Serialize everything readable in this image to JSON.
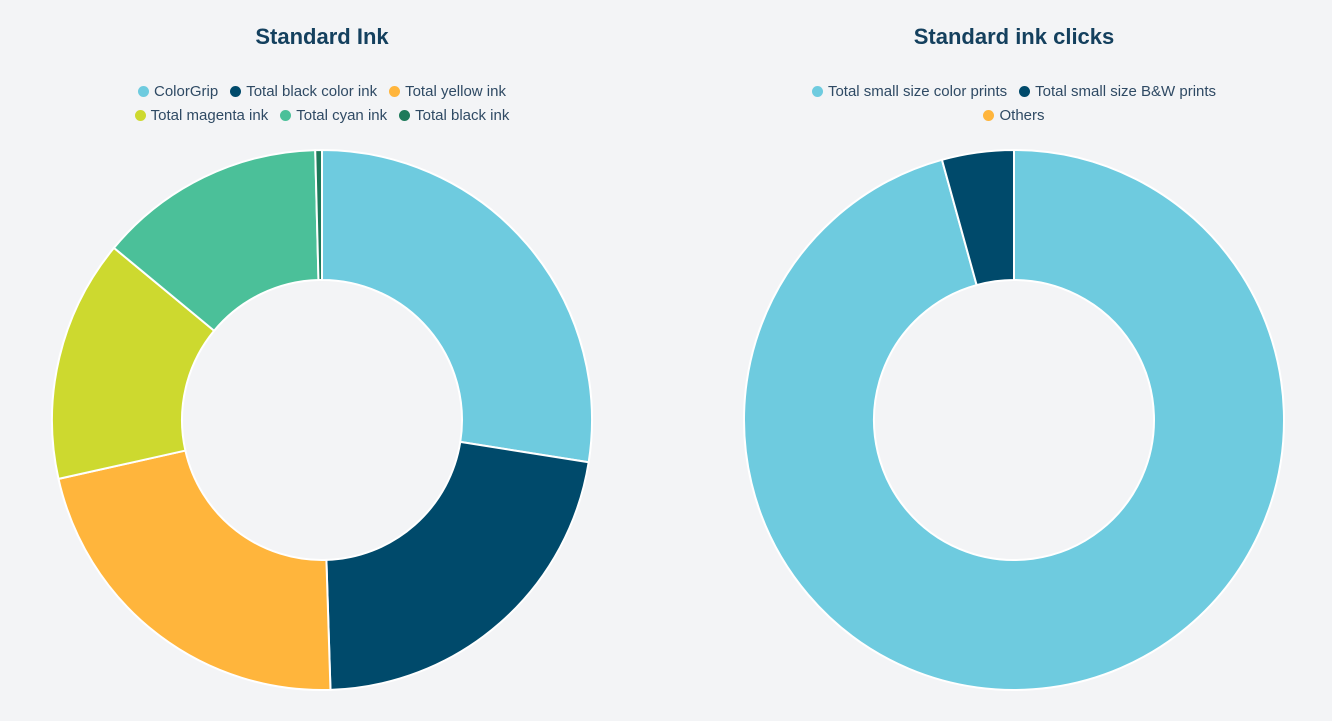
{
  "chart_data": [
    {
      "type": "pie",
      "title": "Standard Ink",
      "donut": true,
      "legend": "top",
      "series": [
        {
          "name": "ColorGrip",
          "value": 27.5,
          "color": "#6ecbdf"
        },
        {
          "name": "Total black color ink",
          "value": 22.0,
          "color": "#004a6b"
        },
        {
          "name": "Total yellow ink",
          "value": 22.0,
          "color": "#ffb53c"
        },
        {
          "name": "Total magenta ink",
          "value": 14.5,
          "color": "#cdd92f"
        },
        {
          "name": "Total cyan ink",
          "value": 13.6,
          "color": "#4bc099"
        },
        {
          "name": "Total black ink",
          "value": 0.4,
          "color": "#1e7a5a"
        }
      ],
      "legend_rows": [
        [
          0,
          1,
          2
        ],
        [
          3,
          4,
          5
        ]
      ]
    },
    {
      "type": "pie",
      "title": "Standard ink clicks",
      "donut": true,
      "legend": "top",
      "series": [
        {
          "name": "Total small size color prints",
          "value": 95.7,
          "color": "#6ecbdf"
        },
        {
          "name": "Total small size B&W prints",
          "value": 4.3,
          "color": "#004a6b"
        },
        {
          "name": "Others",
          "value": 0.0,
          "color": "#ffb53c"
        }
      ],
      "legend_rows": [
        [
          0,
          1
        ],
        [
          2
        ]
      ]
    }
  ]
}
